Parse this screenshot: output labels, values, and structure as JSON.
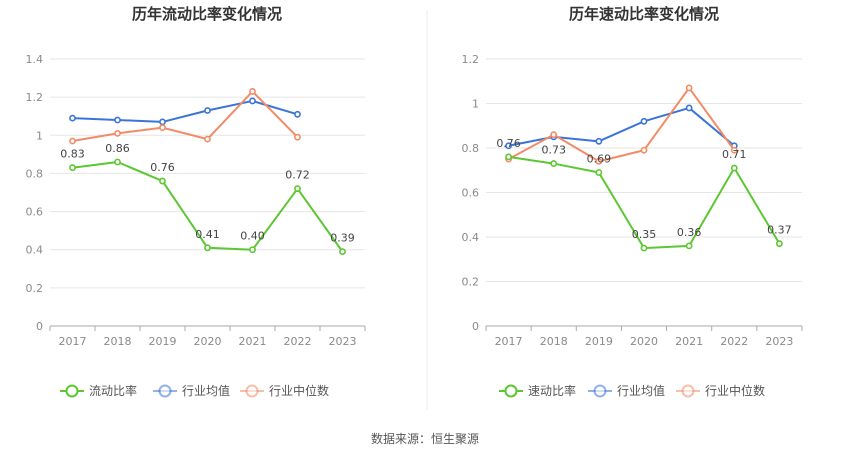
{
  "source": "数据来源：恒生聚源",
  "chart_data": [
    {
      "type": "line",
      "title": "历年流动比率变化情况",
      "categories": [
        "2017",
        "2018",
        "2019",
        "2020",
        "2021",
        "2022",
        "2023"
      ],
      "ylim": [
        0,
        1.4
      ],
      "yticks": [
        0,
        0.2,
        0.4,
        0.6,
        0.8,
        1,
        1.2,
        1.4
      ],
      "ytick_labels": [
        "0",
        "0.2",
        "0.4",
        "0.6",
        "0.8",
        "1",
        "1.2",
        "1.4"
      ],
      "grid": true,
      "legend_position": "bottom",
      "series": [
        {
          "name": "流动比率",
          "color": "#5cc731",
          "values": [
            0.83,
            0.86,
            0.76,
            0.41,
            0.4,
            0.72,
            0.39
          ],
          "labels": [
            "0.83",
            "0.86",
            "0.76",
            "0.41",
            "0.40",
            "0.72",
            "0.39"
          ]
        },
        {
          "name": "行业均值",
          "color": "#3b74d8",
          "values": [
            1.09,
            1.08,
            1.07,
            1.13,
            1.18,
            1.11,
            null
          ]
        },
        {
          "name": "行业中位数",
          "color": "#f28b66",
          "values": [
            0.97,
            1.01,
            1.04,
            0.98,
            1.23,
            0.99,
            null
          ]
        }
      ]
    },
    {
      "type": "line",
      "title": "历年速动比率变化情况",
      "categories": [
        "2017",
        "2018",
        "2019",
        "2020",
        "2021",
        "2022",
        "2023"
      ],
      "ylim": [
        0,
        1.2
      ],
      "yticks": [
        0,
        0.2,
        0.4,
        0.6,
        0.8,
        1,
        1.2
      ],
      "ytick_labels": [
        "0",
        "0.2",
        "0.4",
        "0.6",
        "0.8",
        "1",
        "1.2"
      ],
      "grid": true,
      "legend_position": "bottom",
      "series": [
        {
          "name": "速动比率",
          "color": "#5cc731",
          "values": [
            0.76,
            0.73,
            0.69,
            0.35,
            0.36,
            0.71,
            0.37
          ],
          "labels": [
            "0.76",
            "0.73",
            "0.69",
            "0.35",
            "0.36",
            "0.71",
            "0.37"
          ]
        },
        {
          "name": "行业均值",
          "color": "#3b74d8",
          "values": [
            0.81,
            0.85,
            0.83,
            0.92,
            0.98,
            0.81,
            null
          ]
        },
        {
          "name": "行业中位数",
          "color": "#f28b66",
          "values": [
            0.75,
            0.86,
            0.74,
            0.79,
            1.07,
            0.79,
            null
          ]
        }
      ]
    }
  ]
}
